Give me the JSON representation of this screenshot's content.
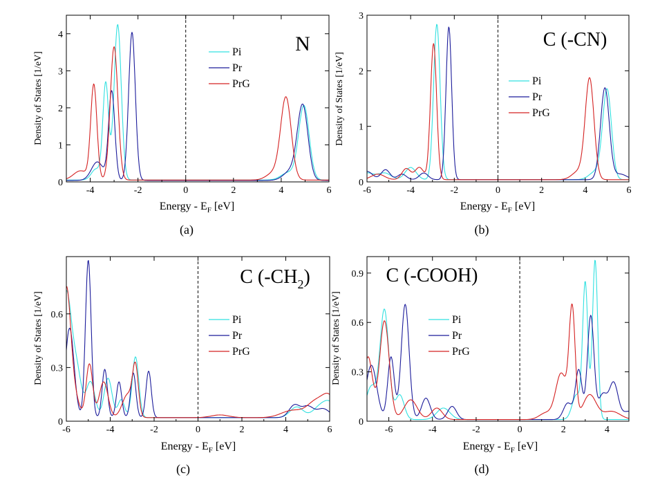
{
  "legend_colors": {
    "Pi": "#30e0e0",
    "Pr": "#1a1a9a",
    "PrG": "#d42020"
  },
  "chart_data": [
    {
      "id": "a",
      "type": "line",
      "caption": "(a)",
      "title": "N",
      "xlabel_main": "Energy - E",
      "xlabel_sub": "F",
      "xlabel_unit": " [eV]",
      "ylabel": "Density of States [1/eV]",
      "xlim": [
        -5,
        6
      ],
      "ylim": [
        0,
        4.5
      ],
      "xticks": [
        -4,
        -2,
        0,
        2,
        4,
        6
      ],
      "yticks": [
        0,
        1,
        2,
        3,
        4
      ],
      "legend_position": "top-center-right",
      "series": [
        {
          "name": "Pi",
          "color": "#30e0e0",
          "baseline": 0.05,
          "peaks": [
            [
              -3.35,
              2.6,
              0.12
            ],
            [
              -2.85,
              4.2,
              0.15
            ],
            [
              -3.75,
              0.3,
              0.2
            ],
            [
              4.95,
              2.0,
              0.22
            ],
            [
              4.3,
              0.2,
              0.3
            ]
          ]
        },
        {
          "name": "Pr",
          "color": "#1a1a9a",
          "baseline": 0.04,
          "peaks": [
            [
              -3.1,
              2.4,
              0.13
            ],
            [
              -2.25,
              4.0,
              0.14
            ],
            [
              -3.7,
              0.5,
              0.25
            ],
            [
              4.9,
              2.0,
              0.22
            ],
            [
              4.4,
              0.25,
              0.3
            ]
          ]
        },
        {
          "name": "PrG",
          "color": "#d42020",
          "baseline": 0.05,
          "peaks": [
            [
              -3.85,
              2.55,
              0.13
            ],
            [
              -3.0,
              3.6,
              0.16
            ],
            [
              -4.4,
              0.25,
              0.3
            ],
            [
              4.2,
              2.2,
              0.22
            ],
            [
              3.7,
              0.2,
              0.3
            ]
          ]
        }
      ]
    },
    {
      "id": "b",
      "type": "line",
      "caption": "(b)",
      "title": "C (-CN)",
      "xlabel_main": "Energy - E",
      "xlabel_sub": "F",
      "xlabel_unit": " [eV]",
      "ylabel": "Density of States [1/eV]",
      "xlim": [
        -6,
        6
      ],
      "ylim": [
        0,
        3
      ],
      "xticks": [
        -6,
        -4,
        -2,
        0,
        2,
        4,
        6
      ],
      "yticks": [
        0,
        1,
        2,
        3
      ],
      "legend_position": "middle-right",
      "series": [
        {
          "name": "Pi",
          "color": "#30e0e0",
          "baseline": 0.04,
          "peaks": [
            [
              -2.8,
              2.8,
              0.15
            ],
            [
              -4.0,
              0.22,
              0.25
            ],
            [
              -5.2,
              0.12,
              0.3
            ],
            [
              -6.0,
              0.12,
              0.3
            ],
            [
              5.0,
              1.6,
              0.2
            ],
            [
              4.5,
              0.15,
              0.3
            ]
          ]
        },
        {
          "name": "Pr",
          "color": "#1a1a9a",
          "baseline": 0.04,
          "peaks": [
            [
              -2.25,
              2.75,
              0.13
            ],
            [
              -5.15,
              0.18,
              0.2
            ],
            [
              -4.4,
              0.1,
              0.2
            ],
            [
              -3.4,
              0.12,
              0.2
            ],
            [
              -6.0,
              0.15,
              0.25
            ],
            [
              4.9,
              1.65,
              0.2
            ],
            [
              5.6,
              0.1,
              0.3
            ]
          ]
        },
        {
          "name": "PrG",
          "color": "#d42020",
          "baseline": 0.04,
          "peaks": [
            [
              -2.95,
              2.45,
              0.14
            ],
            [
              -3.6,
              0.22,
              0.2
            ],
            [
              -4.2,
              0.2,
              0.2
            ],
            [
              -5.5,
              0.1,
              0.3
            ],
            [
              4.2,
              1.8,
              0.2
            ],
            [
              3.7,
              0.15,
              0.3
            ]
          ]
        }
      ]
    },
    {
      "id": "c",
      "type": "line",
      "caption": "(c)",
      "title_main": "C (-CH",
      "title_sub": "2",
      "title_end": ")",
      "xlabel_main": "Energy - E",
      "xlabel_sub": "F",
      "xlabel_unit": " [eV]",
      "ylabel": "Density of States [1/eV]",
      "xlim": [
        -6,
        6
      ],
      "ylim": [
        0,
        0.92
      ],
      "xticks": [
        -6,
        -4,
        -2,
        0,
        2,
        4,
        6
      ],
      "yticks": [
        0,
        0.3,
        0.6
      ],
      "ytick_labels": [
        "0",
        "0.3",
        "0.6"
      ],
      "legend_position": "middle-right",
      "series": [
        {
          "name": "Pi",
          "color": "#30e0e0",
          "baseline": 0.02,
          "peaks": [
            [
              -6.0,
              0.7,
              0.25
            ],
            [
              -5.5,
              0.22,
              0.2
            ],
            [
              -4.9,
              0.2,
              0.2
            ],
            [
              -4.1,
              0.22,
              0.18
            ],
            [
              -2.85,
              0.34,
              0.15
            ],
            [
              -3.5,
              0.1,
              0.15
            ],
            [
              4.5,
              0.06,
              0.3
            ],
            [
              5.5,
              0.05,
              0.3
            ],
            [
              6.0,
              0.08,
              0.3
            ]
          ]
        },
        {
          "name": "Pr",
          "color": "#1a1a9a",
          "baseline": 0.02,
          "peaks": [
            [
              -5.0,
              0.88,
              0.13
            ],
            [
              -5.85,
              0.5,
              0.2
            ],
            [
              -4.25,
              0.27,
              0.12
            ],
            [
              -3.6,
              0.2,
              0.12
            ],
            [
              -2.95,
              0.25,
              0.12
            ],
            [
              -2.25,
              0.26,
              0.12
            ],
            [
              4.4,
              0.07,
              0.25
            ],
            [
              5.0,
              0.06,
              0.25
            ],
            [
              5.7,
              0.05,
              0.3
            ]
          ]
        },
        {
          "name": "PrG",
          "color": "#d42020",
          "baseline": 0.02,
          "peaks": [
            [
              -6.0,
              0.72,
              0.2
            ],
            [
              -4.95,
              0.3,
              0.15
            ],
            [
              -4.3,
              0.2,
              0.2
            ],
            [
              -3.2,
              0.13,
              0.25
            ],
            [
              -2.85,
              0.26,
              0.13
            ],
            [
              -5.6,
              0.1,
              0.2
            ],
            [
              1.0,
              0.015,
              0.4
            ],
            [
              4.3,
              0.04,
              0.5
            ],
            [
              5.4,
              0.09,
              0.4
            ],
            [
              6.0,
              0.1,
              0.3
            ]
          ]
        }
      ]
    },
    {
      "id": "d",
      "type": "line",
      "caption": "(d)",
      "title": "C (-COOH)",
      "xlabel_main": "Energy - E",
      "xlabel_sub": "F",
      "xlabel_unit": " [eV]",
      "ylabel": "Density of States [1/eV]",
      "xlim": [
        -7,
        5
      ],
      "ylim": [
        0,
        1.0
      ],
      "xticks": [
        -6,
        -4,
        -2,
        0,
        2,
        4
      ],
      "yticks": [
        0,
        0.3,
        0.6,
        0.9
      ],
      "ytick_labels": [
        "0",
        "0.3",
        "0.6",
        "0.9"
      ],
      "legend_position": "top-center-right",
      "series": [
        {
          "name": "Pi",
          "color": "#30e0e0",
          "baseline": 0.01,
          "peaks": [
            [
              -6.2,
              0.66,
              0.2
            ],
            [
              -6.8,
              0.2,
              0.25
            ],
            [
              -5.5,
              0.15,
              0.2
            ],
            [
              -3.5,
              0.07,
              0.3
            ],
            [
              3.0,
              0.82,
              0.12
            ],
            [
              3.45,
              0.97,
              0.12
            ],
            [
              2.6,
              0.15,
              0.2
            ]
          ]
        },
        {
          "name": "Pr",
          "color": "#1a1a9a",
          "baseline": 0.01,
          "peaks": [
            [
              -6.8,
              0.33,
              0.25
            ],
            [
              -5.9,
              0.38,
              0.15
            ],
            [
              -5.25,
              0.7,
              0.18
            ],
            [
              -4.3,
              0.13,
              0.2
            ],
            [
              -3.1,
              0.08,
              0.2
            ],
            [
              2.2,
              0.1,
              0.2
            ],
            [
              2.7,
              0.3,
              0.15
            ],
            [
              3.25,
              0.63,
              0.15
            ],
            [
              4.3,
              0.22,
              0.2
            ],
            [
              3.8,
              0.15,
              0.2
            ],
            [
              5.0,
              0.05,
              0.3
            ]
          ]
        },
        {
          "name": "PrG",
          "color": "#d42020",
          "baseline": 0.01,
          "peaks": [
            [
              -6.95,
              0.38,
              0.2
            ],
            [
              -6.2,
              0.6,
              0.22
            ],
            [
              -5.0,
              0.12,
              0.3
            ],
            [
              -3.8,
              0.07,
              0.25
            ],
            [
              1.2,
              0.04,
              0.3
            ],
            [
              1.9,
              0.28,
              0.25
            ],
            [
              2.4,
              0.66,
              0.14
            ],
            [
              3.2,
              0.15,
              0.3
            ],
            [
              4.2,
              0.05,
              0.4
            ]
          ]
        }
      ]
    }
  ]
}
